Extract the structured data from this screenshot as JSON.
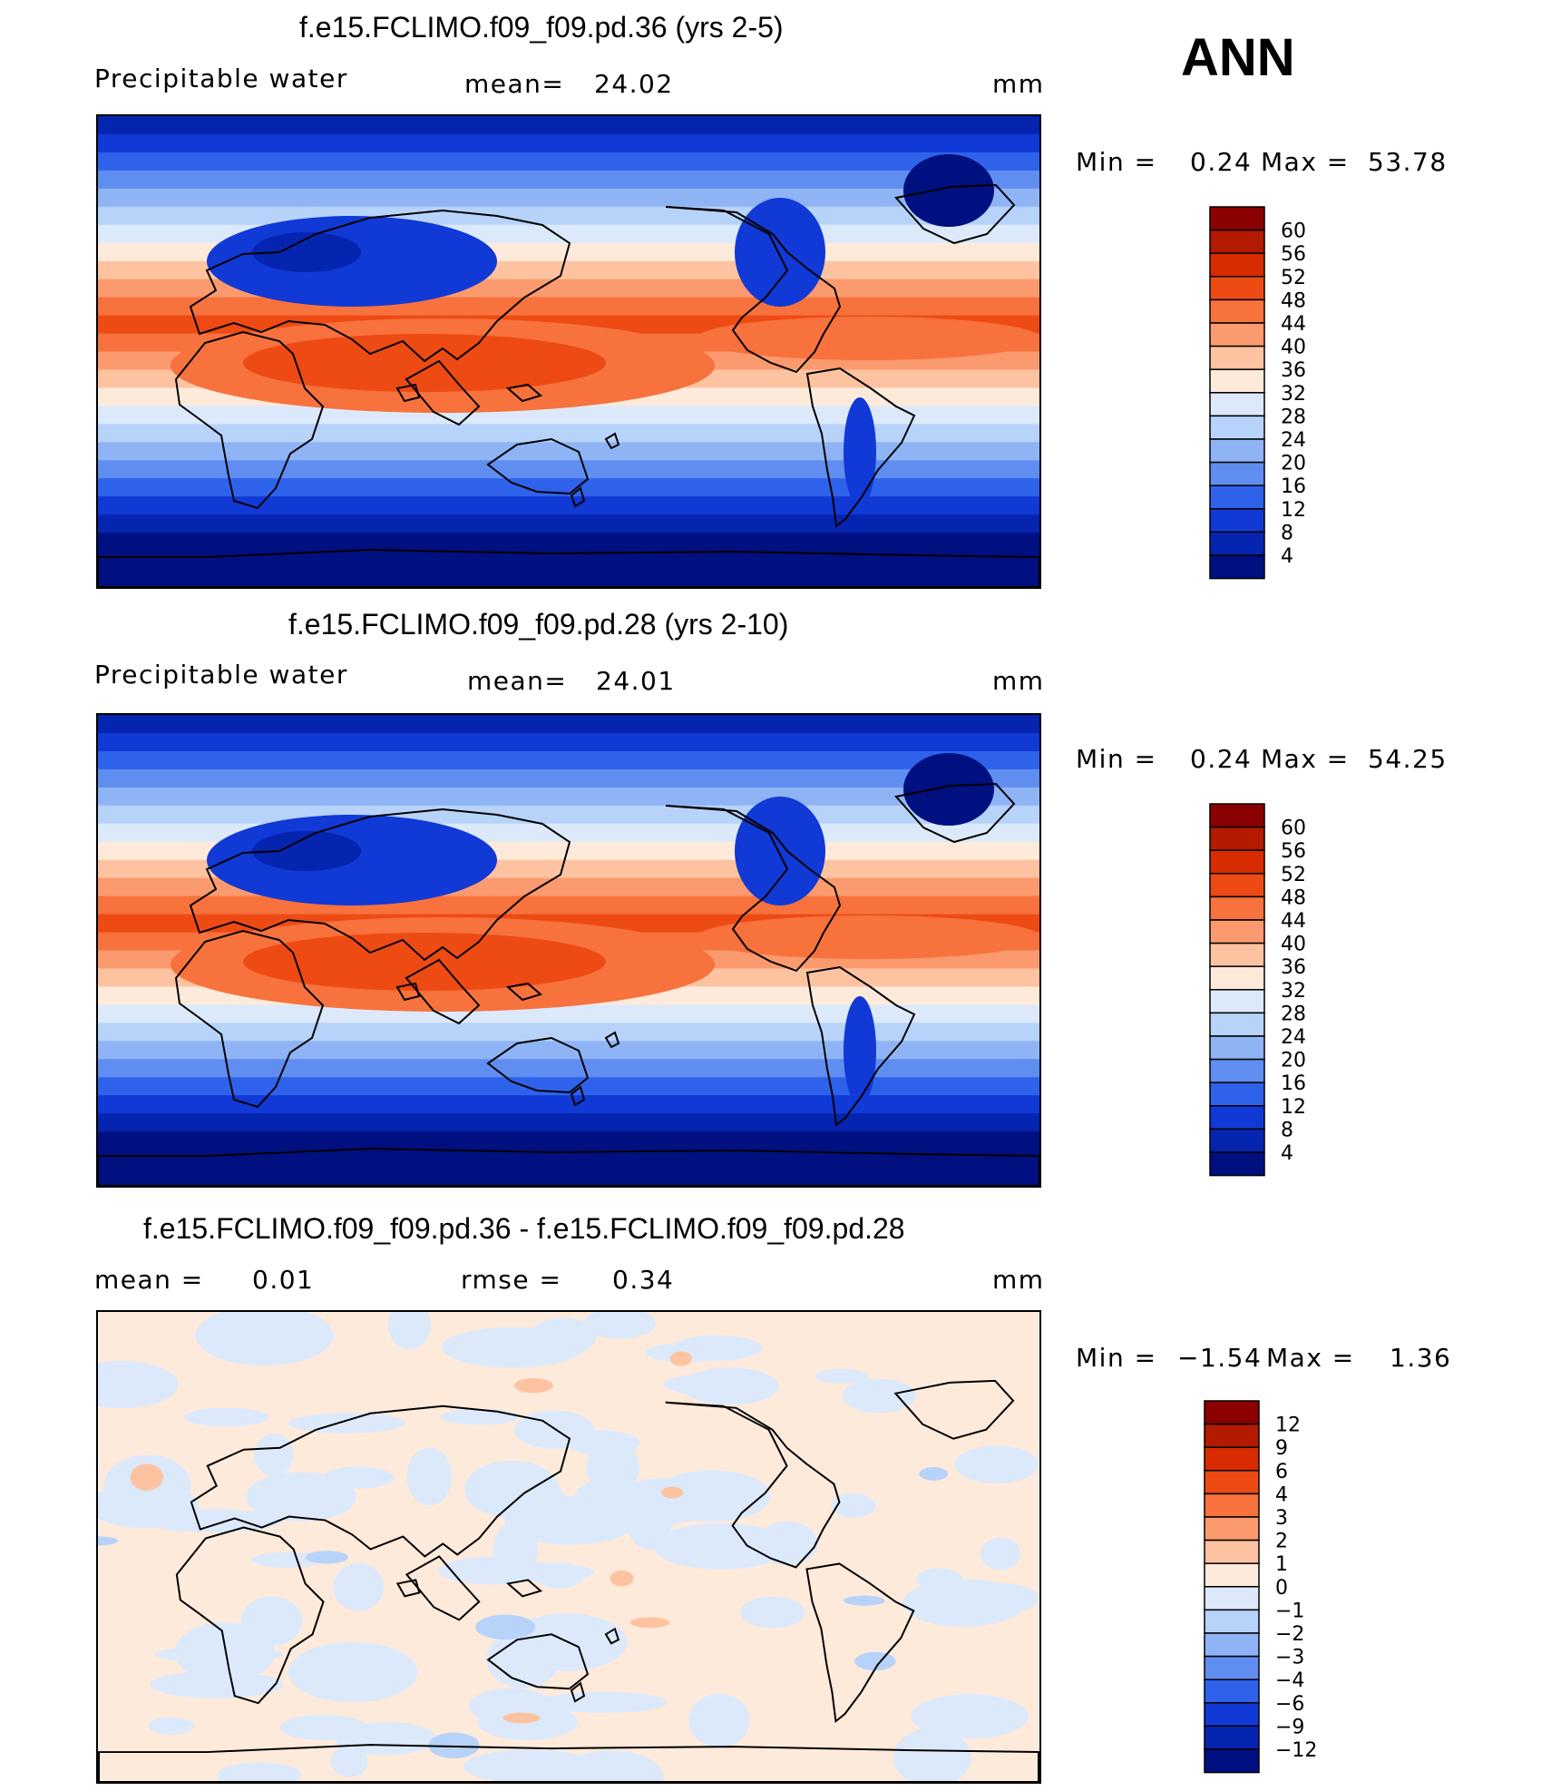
{
  "header": {
    "season": "ANN"
  },
  "panels": [
    {
      "title": "f.e15.FCLIMO.f09_f09.pd.36 (yrs 2-5)",
      "left_label": "Precipitable  water",
      "mean_label": "mean=",
      "mean_value": "24.02",
      "units": "mm",
      "min_label": "Min  =",
      "min_value": "0.24",
      "max_label": "Max  =",
      "max_value": "53.78",
      "colorbar": {
        "labels": [
          "60",
          "56",
          "52",
          "48",
          "44",
          "40",
          "36",
          "32",
          "28",
          "24",
          "20",
          "16",
          "12",
          "8",
          "4"
        ],
        "colors": [
          "#8b0000",
          "#b31a00",
          "#d92b00",
          "#ee4a14",
          "#f7723c",
          "#fb9a6e",
          "#fdc3a0",
          "#feeadb",
          "#dce9fb",
          "#b8d3fa",
          "#8fb4f5",
          "#5f8df0",
          "#2f62ea",
          "#1139d6",
          "#0525b0",
          "#001080"
        ]
      },
      "map_palette": [
        "#001080",
        "#0525b0",
        "#1139d6",
        "#2f62ea",
        "#5f8df0",
        "#8fb4f5",
        "#b8d3fa",
        "#dce9fb",
        "#feeadb",
        "#fdc3a0",
        "#fb9a6e",
        "#f7723c",
        "#ee4a14"
      ]
    },
    {
      "title": "f.e15.FCLIMO.f09_f09.pd.28 (yrs 2-10)",
      "left_label": "Precipitable  water",
      "mean_label": "mean=",
      "mean_value": "24.01",
      "units": "mm",
      "min_label": "Min  =",
      "min_value": "0.24",
      "max_label": "Max  =",
      "max_value": "54.25",
      "colorbar": {
        "labels": [
          "60",
          "56",
          "52",
          "48",
          "44",
          "40",
          "36",
          "32",
          "28",
          "24",
          "20",
          "16",
          "12",
          "8",
          "4"
        ],
        "colors": [
          "#8b0000",
          "#b31a00",
          "#d92b00",
          "#ee4a14",
          "#f7723c",
          "#fb9a6e",
          "#fdc3a0",
          "#feeadb",
          "#dce9fb",
          "#b8d3fa",
          "#8fb4f5",
          "#5f8df0",
          "#2f62ea",
          "#1139d6",
          "#0525b0",
          "#001080"
        ]
      },
      "map_palette": [
        "#001080",
        "#0525b0",
        "#1139d6",
        "#2f62ea",
        "#5f8df0",
        "#8fb4f5",
        "#b8d3fa",
        "#dce9fb",
        "#feeadb",
        "#fdc3a0",
        "#fb9a6e",
        "#f7723c",
        "#ee4a14"
      ]
    },
    {
      "title": "f.e15.FCLIMO.f09_f09.pd.36 - f.e15.FCLIMO.f09_f09.pd.28",
      "left_label": "mean  =",
      "left_value": "0.01",
      "mean_label": "rmse  =",
      "mean_value": "0.34",
      "units": "mm",
      "min_label": "Min  =",
      "min_value": "−1.54",
      "max_label": "Max  =",
      "max_value": "1.36",
      "colorbar": {
        "labels": [
          "12",
          "9",
          "6",
          "4",
          "3",
          "2",
          "1",
          "0",
          "−1",
          "−2",
          "−3",
          "−4",
          "−6",
          "−9",
          "−12"
        ],
        "colors": [
          "#8b0000",
          "#b31a00",
          "#d92b00",
          "#ee4a14",
          "#f7723c",
          "#fb9a6e",
          "#fdc3a0",
          "#feeadb",
          "#dce9fb",
          "#b8d3fa",
          "#8fb4f5",
          "#5f8df0",
          "#2f62ea",
          "#1139d6",
          "#0525b0",
          "#001080"
        ]
      },
      "map_palette": [
        "#dce9fb",
        "#feeadb",
        "#b8d3fa",
        "#fdc3a0"
      ]
    }
  ]
}
